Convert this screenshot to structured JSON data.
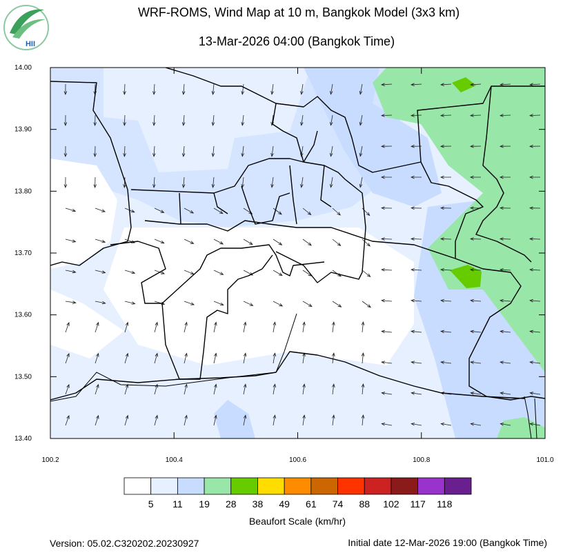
{
  "header": {
    "logo_text": "HII",
    "title": "WRF-ROMS, Wind Map at 10 m, Bangkok Model (3x3 km)",
    "subtitle": "13-Mar-2026 04:00 (Bangkok Time)"
  },
  "map": {
    "xlim": [
      100.2,
      101.0
    ],
    "ylim": [
      13.4,
      14.0
    ],
    "xticks": [
      100.2,
      100.4,
      100.6,
      100.8,
      {
        "value": 101.0,
        "label": "101.0"
      }
    ],
    "yticks": [
      {
        "value": 13.4,
        "label": "13.40"
      },
      {
        "value": 13.5,
        "label": "13.50"
      },
      {
        "value": 13.6,
        "label": "13.60"
      },
      {
        "value": 13.7,
        "label": "13.70"
      },
      {
        "value": 13.8,
        "label": "13.80"
      },
      {
        "value": 13.9,
        "label": "13.90"
      },
      {
        "value": 14.0,
        "label": "14.00"
      }
    ]
  },
  "legend": {
    "title": "Beaufort Scale (km/hr)",
    "colors": [
      "#ffffff",
      "#e6f0ff",
      "#c8dcff",
      "#98e6a8",
      "#66cc00",
      "#ffdd00",
      "#ff8c00",
      "#cc6600",
      "#ff3300",
      "#cc2222",
      "#8b1a1a",
      "#9933cc",
      "#6a1f8f"
    ],
    "labels": [
      5,
      11,
      19,
      28,
      38,
      49,
      61,
      74,
      88,
      102,
      117,
      118
    ]
  },
  "footer": {
    "version": "Version: 05.02.C320202.20230927",
    "initial_date": "Initial date 12-Mar-2026 19:00 (Bangkok Time)"
  }
}
